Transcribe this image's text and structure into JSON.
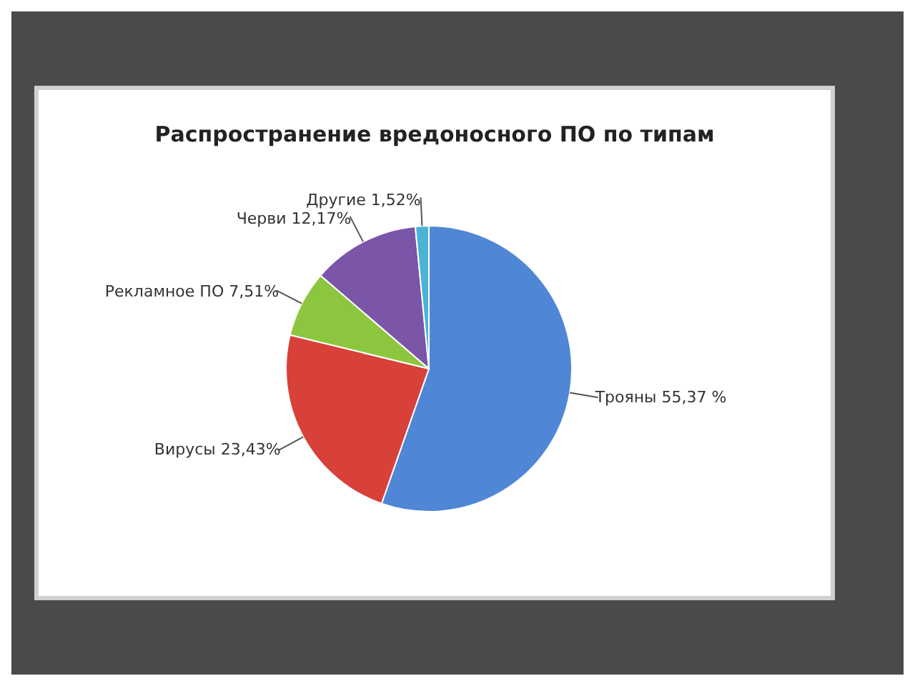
{
  "chart_data": {
    "type": "pie",
    "title": "Распространение вредоносного ПО по типам",
    "categories": [
      "Трояны",
      "Вирусы",
      "Рекламное ПО",
      "Черви",
      "Другие"
    ],
    "values": [
      55.37,
      23.43,
      7.51,
      12.17,
      1.52
    ],
    "value_labels": [
      "55,37 %",
      "23,43%",
      "7,51%",
      "12,17%",
      "1,52%"
    ],
    "colors": [
      "#4f86d6",
      "#d8403a",
      "#8cc63f",
      "#7a55a8",
      "#4bb3d4"
    ]
  }
}
